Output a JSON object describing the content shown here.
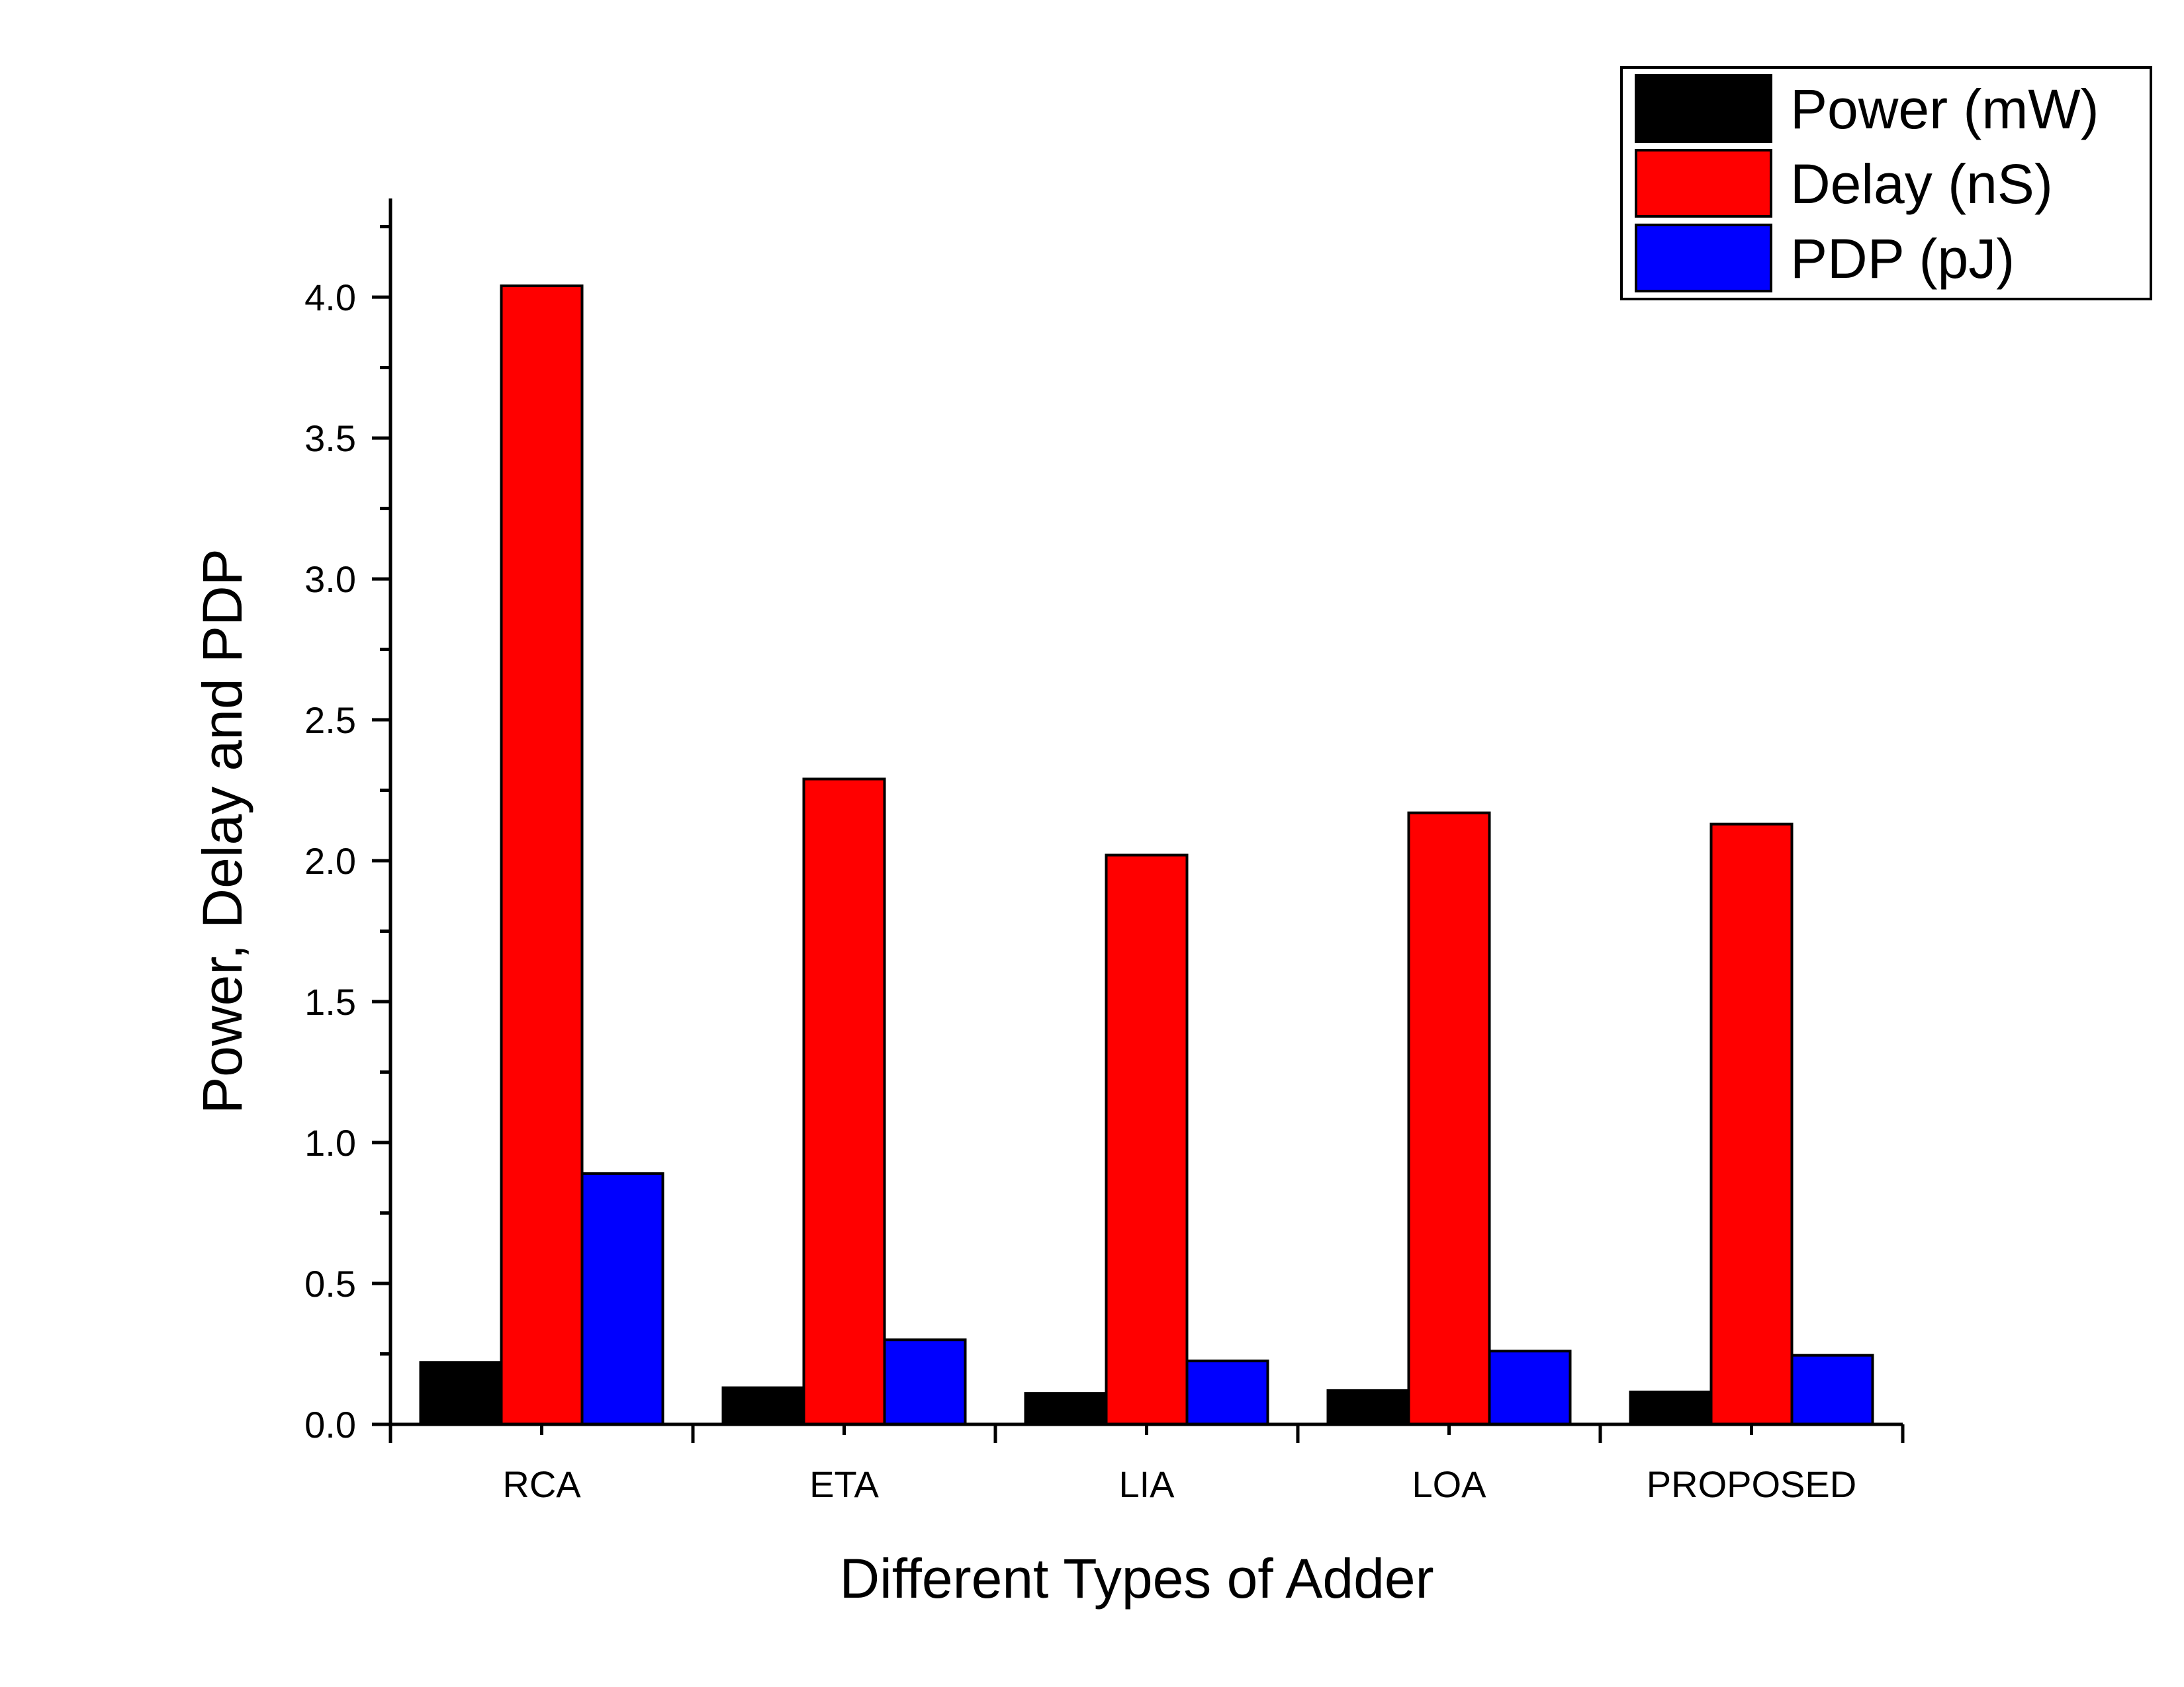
{
  "chart_data": {
    "type": "bar",
    "title": "",
    "xlabel": "Different Types of Adder",
    "ylabel": "Power,  Delay and PDP",
    "categories": [
      "RCA",
      "ETA",
      "LIA",
      "LOA",
      "PROPOSED"
    ],
    "series": [
      {
        "name": "Power (mW)",
        "color": "#000000",
        "values": [
          0.22,
          0.13,
          0.11,
          0.12,
          0.115
        ]
      },
      {
        "name": "Delay (nS)",
        "color": "#ff0000",
        "values": [
          4.04,
          2.29,
          2.02,
          2.17,
          2.13
        ]
      },
      {
        "name": "PDP (pJ)",
        "color": "#0000ff",
        "values": [
          0.89,
          0.3,
          0.225,
          0.26,
          0.245
        ]
      }
    ],
    "ylim": [
      0,
      4.35
    ],
    "yticks": [
      "0.0",
      "0.5",
      "1.0",
      "1.5",
      "2.0",
      "2.5",
      "3.0",
      "3.5",
      "4.0"
    ],
    "ytick_step": 0.5,
    "grid": false,
    "legend_position": "top-right"
  }
}
